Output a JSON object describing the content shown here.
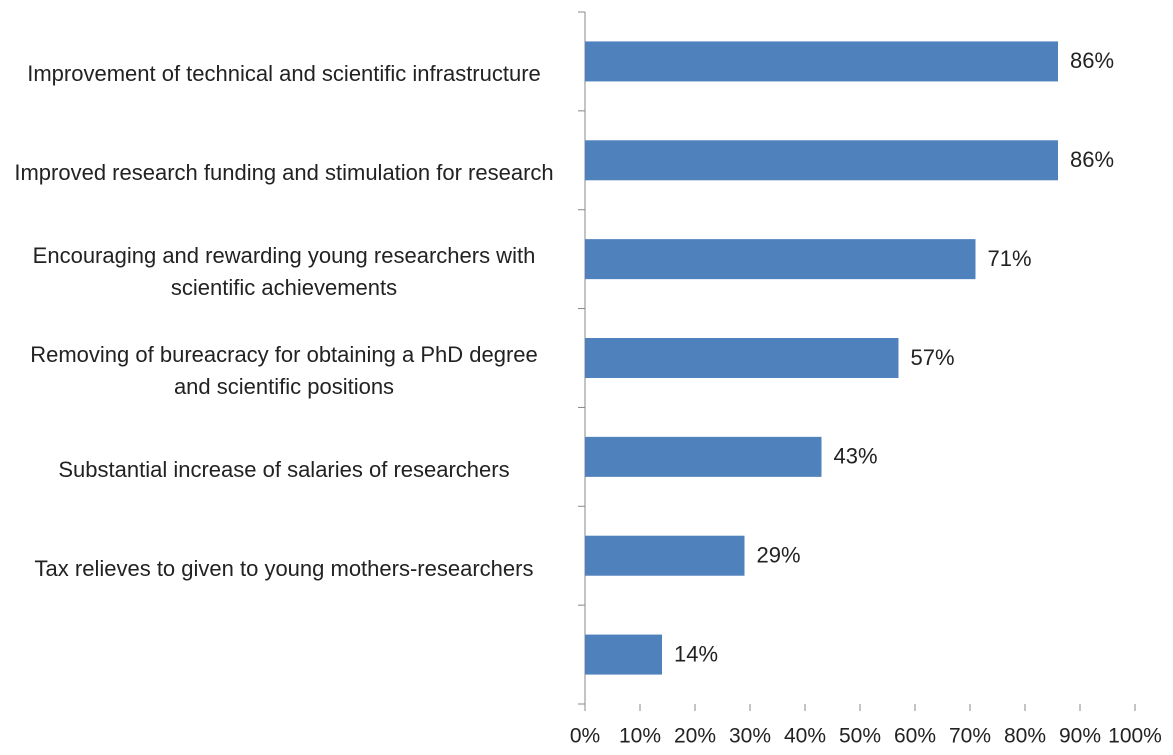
{
  "chart_data": {
    "type": "bar",
    "orientation": "horizontal",
    "categories": [
      "Improvement of technical and scientific infrastructure",
      "Improved research funding and stimulation for research",
      "Encouraging and rewarding young researchers with scientific achievements",
      "Removing of bureacracy for obtaining a PhD degree and scientific positions",
      "Substantial increase of salaries of researchers",
      "Tax relieves to given to young mothers-researchers",
      null
    ],
    "values": [
      86,
      86,
      71,
      57,
      43,
      29,
      14
    ],
    "value_labels": [
      "86%",
      "86%",
      "71%",
      "57%",
      "43%",
      "29%",
      "14%"
    ],
    "color": "#4f81bd",
    "xlim": [
      0,
      100
    ],
    "xticks": [
      {
        "value": 0,
        "label": "0%"
      },
      {
        "value": 10,
        "label": "10%"
      },
      {
        "value": 20,
        "label": "20%"
      },
      {
        "value": 30,
        "label": "30%"
      },
      {
        "value": 40,
        "label": "40%"
      },
      {
        "value": 50,
        "label": "50%"
      },
      {
        "value": 60,
        "label": "60%"
      },
      {
        "value": 70,
        "label": "70%"
      },
      {
        "value": 80,
        "label": "80%"
      },
      {
        "value": 90,
        "label": "90%"
      },
      {
        "value": 100,
        "label": "100%"
      }
    ],
    "grid": false
  }
}
